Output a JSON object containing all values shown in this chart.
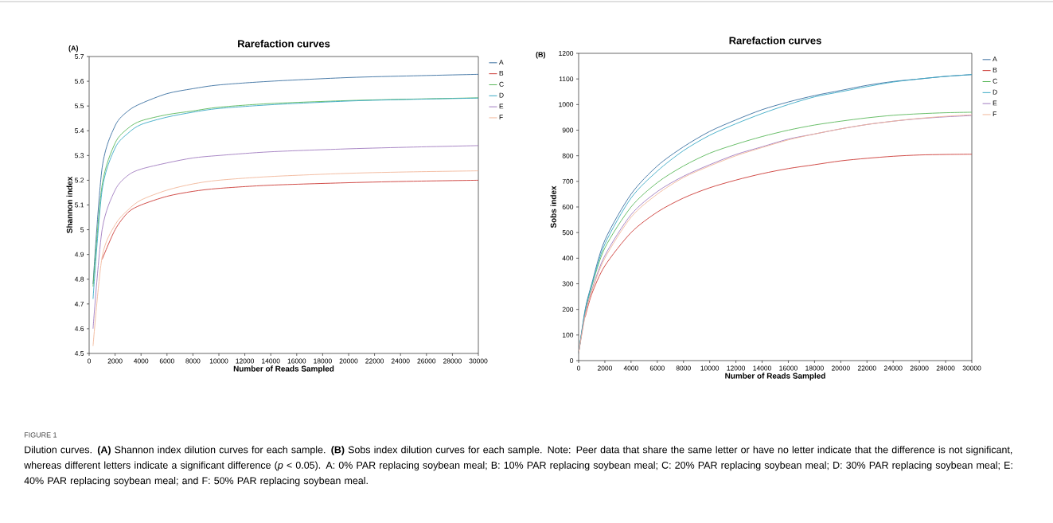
{
  "chart_data": [
    {
      "type": "line",
      "title": "Rarefaction curves",
      "xlabel": "Number of Reads Sampled",
      "ylabel": "Shannon index",
      "legend": "right",
      "grid": false,
      "marker": "none",
      "line_style": "solid",
      "xlim": [
        0,
        30000
      ],
      "ylim": [
        4.5,
        5.7
      ],
      "xticks": [
        0,
        2000,
        4000,
        6000,
        8000,
        10000,
        12000,
        14000,
        16000,
        18000,
        20000,
        22000,
        24000,
        26000,
        28000,
        30000
      ],
      "yticks": [
        4.5,
        4.6,
        4.7,
        4.8,
        4.9,
        5,
        5.1,
        5.2,
        5.3,
        5.4,
        5.5,
        5.6,
        5.7
      ],
      "x": [
        300,
        1000,
        2000,
        3000,
        4000,
        6000,
        8000,
        10000,
        14000,
        20000,
        25000,
        30000
      ],
      "series": [
        {
          "name": "A",
          "color": "#3a6fa0",
          "values": [
            4.78,
            5.25,
            5.42,
            5.48,
            5.51,
            5.55,
            5.57,
            5.585,
            5.6,
            5.615,
            5.622,
            5.628
          ]
        },
        {
          "name": "B",
          "color": "#cc3a35",
          "values": [
            null,
            4.88,
            5.0,
            5.07,
            5.1,
            5.135,
            5.155,
            5.167,
            5.18,
            5.19,
            5.196,
            5.2
          ]
        },
        {
          "name": "C",
          "color": "#5ab85a",
          "values": [
            4.77,
            5.18,
            5.35,
            5.41,
            5.44,
            5.465,
            5.48,
            5.495,
            5.51,
            5.522,
            5.528,
            5.533
          ]
        },
        {
          "name": "D",
          "color": "#3aa9c5",
          "values": [
            4.72,
            5.16,
            5.33,
            5.39,
            5.425,
            5.455,
            5.475,
            5.49,
            5.505,
            5.52,
            5.527,
            5.532
          ]
        },
        {
          "name": "E",
          "color": "#a07cc0",
          "values": [
            4.6,
            5.0,
            5.16,
            5.22,
            5.245,
            5.27,
            5.29,
            5.3,
            5.315,
            5.327,
            5.334,
            5.34
          ]
        },
        {
          "name": "F",
          "color": "#f2b79a",
          "values": [
            4.53,
            4.89,
            5.02,
            5.08,
            5.12,
            5.16,
            5.185,
            5.2,
            5.215,
            5.228,
            5.234,
            5.238
          ]
        }
      ],
      "annotations": [
        "(A)",
        "FIGURE 1",
        "Dilution curves. **(A)** Shannon index dilution curves for each sample. **(B)** Sobs index dilution curves for each sample. Note: Peer data that share the same letter or have no letter indicate that the difference is not significant, whereas different letters indicate a significant difference (*p* < 0.05). A: 0% PAR replacing soybean meal; B: 10% PAR replacing soybean meal; C: 20% PAR replacing soybean meal; D: 30% PAR replacing soybean meal; E: 40% PAR replacing soybean meal; and F: 50% PAR replacing soybean meal."
      ]
    },
    {
      "type": "line",
      "title": "Rarefaction curves",
      "xlabel": "Number of Reads Sampled",
      "ylabel": "Sobs index",
      "legend": "right",
      "grid": false,
      "marker": "none",
      "line_style": "solid",
      "xlim": [
        0,
        30000
      ],
      "ylim": [
        0,
        1200
      ],
      "xticks": [
        0,
        2000,
        4000,
        6000,
        8000,
        10000,
        12000,
        14000,
        16000,
        18000,
        20000,
        22000,
        24000,
        26000,
        28000,
        30000
      ],
      "yticks": [
        0,
        100,
        200,
        300,
        400,
        500,
        600,
        700,
        800,
        900,
        1000,
        1100,
        1200
      ],
      "x": [
        0,
        500,
        1000,
        2000,
        4000,
        6000,
        8000,
        10000,
        12000,
        14000,
        16000,
        18000,
        20000,
        22000,
        24000,
        26000,
        28000,
        30000
      ],
      "series": [
        {
          "name": "A",
          "color": "#3a6fa0",
          "values": [
            30,
            200,
            300,
            470,
            650,
            760,
            835,
            895,
            940,
            980,
            1010,
            1035,
            1055,
            1075,
            1090,
            1100,
            1110,
            1117
          ]
        },
        {
          "name": "B",
          "color": "#cc3a35",
          "values": [
            null,
            170,
            260,
            370,
            500,
            580,
            635,
            675,
            705,
            730,
            750,
            765,
            780,
            790,
            798,
            803,
            805,
            806
          ]
        },
        {
          "name": "C",
          "color": "#5ab85a",
          "values": [
            30,
            190,
            290,
            440,
            600,
            695,
            760,
            810,
            845,
            875,
            900,
            920,
            935,
            948,
            958,
            964,
            968,
            970
          ]
        },
        {
          "name": "D",
          "color": "#3aa9c5",
          "values": [
            30,
            195,
            295,
            455,
            635,
            740,
            820,
            880,
            925,
            965,
            1000,
            1030,
            1050,
            1070,
            1088,
            1100,
            1110,
            1117
          ]
        },
        {
          "name": "E",
          "color": "#a07cc0",
          "values": [
            30,
            180,
            275,
            410,
            570,
            660,
            720,
            765,
            805,
            835,
            865,
            885,
            905,
            922,
            935,
            945,
            952,
            957
          ]
        },
        {
          "name": "F",
          "color": "#f2b79a",
          "values": [
            30,
            175,
            270,
            400,
            560,
            650,
            715,
            760,
            800,
            832,
            862,
            885,
            905,
            922,
            935,
            946,
            954,
            960
          ]
        }
      ],
      "annotations": [
        "(B)"
      ]
    }
  ]
}
